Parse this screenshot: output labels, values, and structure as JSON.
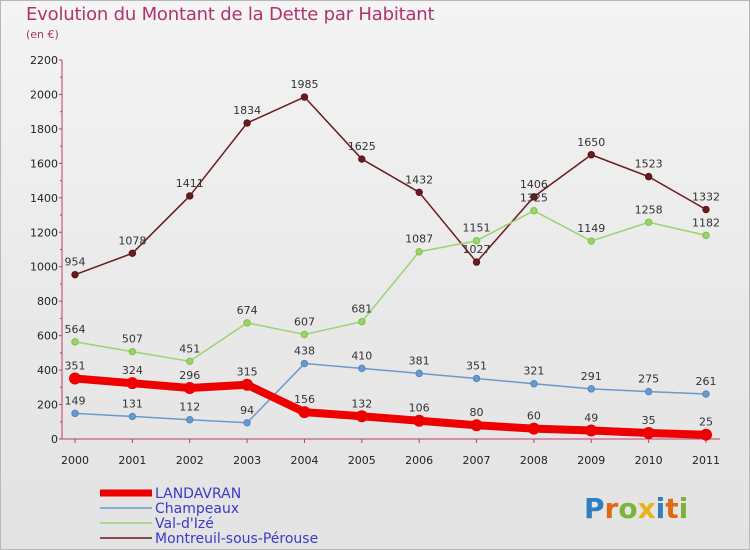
{
  "header": {
    "title": "Evolution du Montant de la Dette par Habitant",
    "subtitle": "(en €)"
  },
  "logo": {
    "text": "Proxiti"
  },
  "chart_data": {
    "type": "line",
    "title": "Evolution du Montant de la Dette par Habitant",
    "subtitle": "(en €)",
    "xlabel": "",
    "ylabel": "",
    "x": [
      "2000",
      "2001",
      "2002",
      "2003",
      "2004",
      "2005",
      "2006",
      "2007",
      "2008",
      "2009",
      "2010",
      "2011"
    ],
    "ylim": [
      0,
      2200
    ],
    "yticks": [
      0,
      200,
      400,
      600,
      800,
      1000,
      1200,
      1400,
      1600,
      1800,
      2000,
      2200
    ],
    "grid": false,
    "legend_position": "bottom-left",
    "series": [
      {
        "name": "Montreuil-sous-Pérouse",
        "color": "#6b1a1f",
        "marker": "#5a1216",
        "width": 1.5,
        "values": [
          954,
          1078,
          1411,
          1834,
          1985,
          1625,
          1432,
          1027,
          1406,
          1650,
          1523,
          1332
        ]
      },
      {
        "name": "Val-d'Izé",
        "color": "#9bd36e",
        "marker": "#7cc243",
        "width": 1.5,
        "values": [
          564,
          507,
          451,
          674,
          607,
          681,
          1087,
          1151,
          1325,
          1149,
          1258,
          1182
        ]
      },
      {
        "name": "Champeaux",
        "color": "#6b9ac9",
        "marker": "#4e86c2",
        "width": 1.5,
        "values": [
          149,
          131,
          112,
          94,
          438,
          410,
          381,
          351,
          321,
          291,
          275,
          261
        ]
      },
      {
        "name": "LANDAVRAN",
        "color": "#ee0000",
        "marker": "#ee0000",
        "width": 8,
        "values": [
          351,
          324,
          296,
          315,
          156,
          132,
          106,
          80,
          60,
          49,
          35,
          25
        ]
      }
    ],
    "legend_order": [
      "LANDAVRAN",
      "Champeaux",
      "Val-d'Izé",
      "Montreuil-sous-Pérouse"
    ],
    "legend_color": "#3a3ac8"
  }
}
